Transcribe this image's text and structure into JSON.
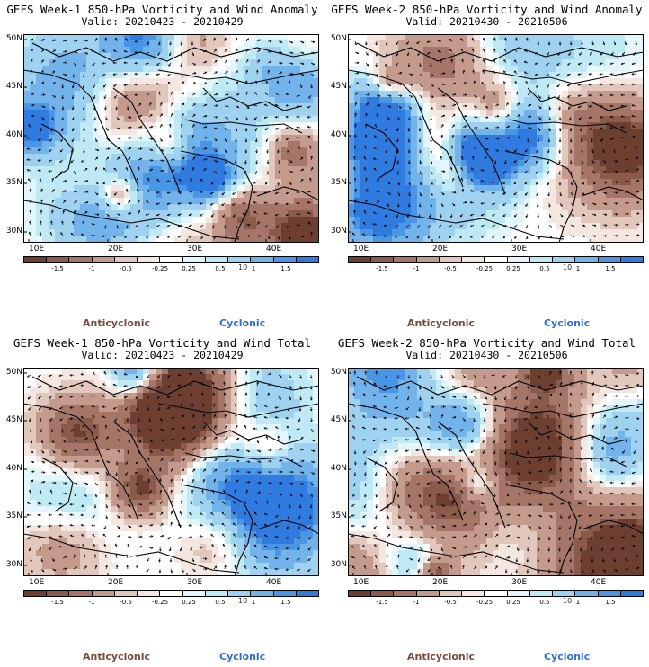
{
  "panels": [
    {
      "title": "GEFS Week-1 850-hPa Vorticity and Wind Anomaly",
      "valid": "Valid: 20210423 - 20210429"
    },
    {
      "title": "GEFS Week-2 850-hPa Vorticity and Wind Anomaly",
      "valid": "Valid: 20210430 - 20210506"
    },
    {
      "title": "GEFS Week-1 850-hPa Vorticity and Wind Total",
      "valid": "Valid: 20210423 - 20210429"
    },
    {
      "title": "GEFS Week-2 850-hPa Vorticity and Wind Total",
      "valid": "Valid: 20210430 - 20210506"
    }
  ],
  "lat_labels": [
    "50N",
    "45N",
    "40N",
    "35N",
    "30N"
  ],
  "lon_labels": [
    "10E",
    "20E",
    "30E",
    "40E"
  ],
  "colorbar": {
    "ticks": [
      "-1.5",
      "-1",
      "-0.5",
      "-0.25",
      "0.25",
      "0.5",
      "1",
      "1.5"
    ],
    "unit": "10",
    "colors": [
      "#6d3f31",
      "#8a5a4b",
      "#a57667",
      "#c49a8c",
      "#e2c7bd",
      "#f4e6e0",
      "#ffffff",
      "#e3f6fb",
      "#bfeaf5",
      "#9ed2f0",
      "#73b3ec",
      "#4a96e6",
      "#2f7be0"
    ]
  },
  "legend": {
    "anticyclonic": "Anticyclonic",
    "cyclonic": "Cyclonic"
  },
  "colors": {
    "anticyclonic": "#6d3f31",
    "cyclonic": "#2f7be0",
    "land_line": "#000000"
  }
}
